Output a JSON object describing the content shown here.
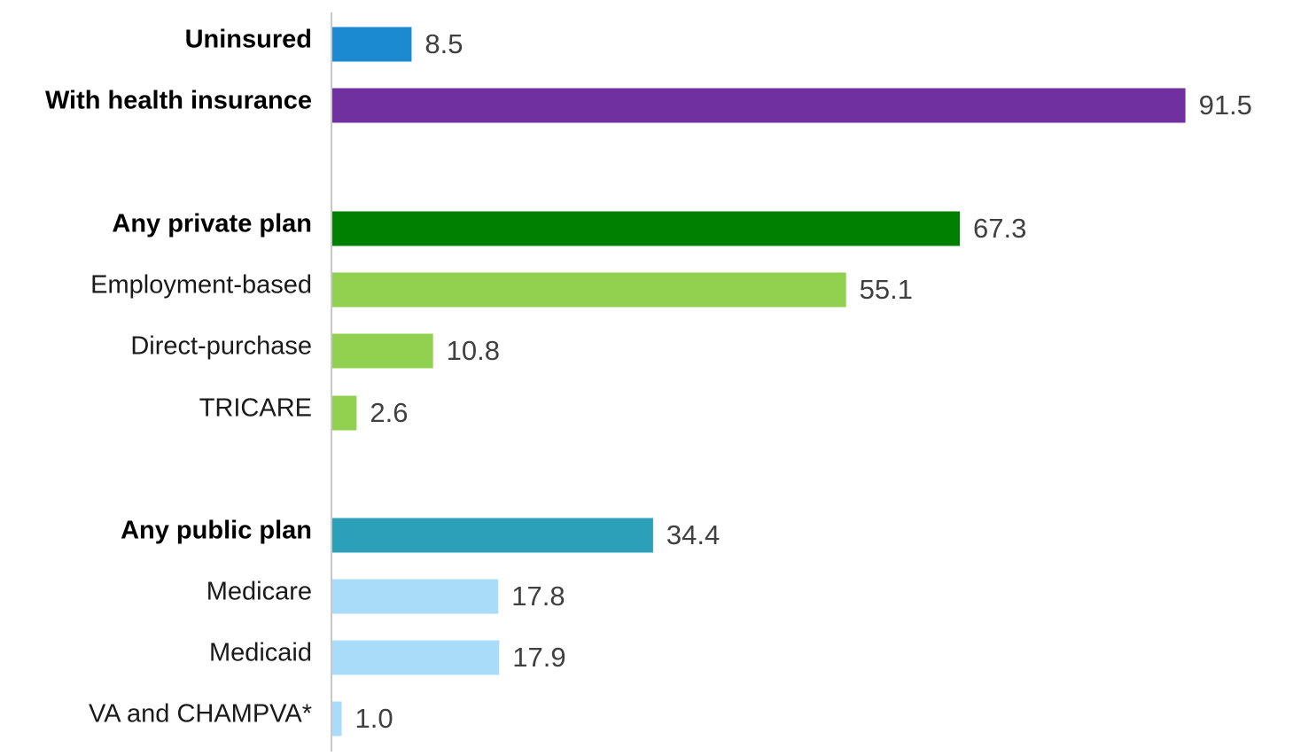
{
  "chart_data": {
    "type": "bar",
    "orientation": "horizontal",
    "categories": [
      "Uninsured",
      "With health insurance",
      "Any private plan",
      "Employment-based",
      "Direct-purchase",
      "TRICARE",
      "Any public plan",
      "Medicare",
      "Medicaid",
      "VA and CHAMPVA*"
    ],
    "values": [
      8.5,
      91.5,
      67.3,
      55.1,
      10.8,
      2.6,
      34.4,
      17.8,
      17.9,
      1.0
    ],
    "value_labels": [
      "8.5",
      "91.5",
      "67.3",
      "55.1",
      "10.8",
      "2.6",
      "34.4",
      "17.8",
      "17.9",
      "1.0"
    ],
    "bold_categories": [
      "Uninsured",
      "With health insurance",
      "Any private plan",
      "Any public plan"
    ],
    "colors": [
      "#1b8ad0",
      "#7030a0",
      "#008000",
      "#92d050",
      "#92d050",
      "#92d050",
      "#2ba0b8",
      "#a9dcf8",
      "#a9dcf8",
      "#a9dcf8"
    ],
    "xlim": [
      0,
      100
    ],
    "grid": false,
    "legend": "none",
    "title": "",
    "xlabel": "",
    "ylabel": ""
  }
}
